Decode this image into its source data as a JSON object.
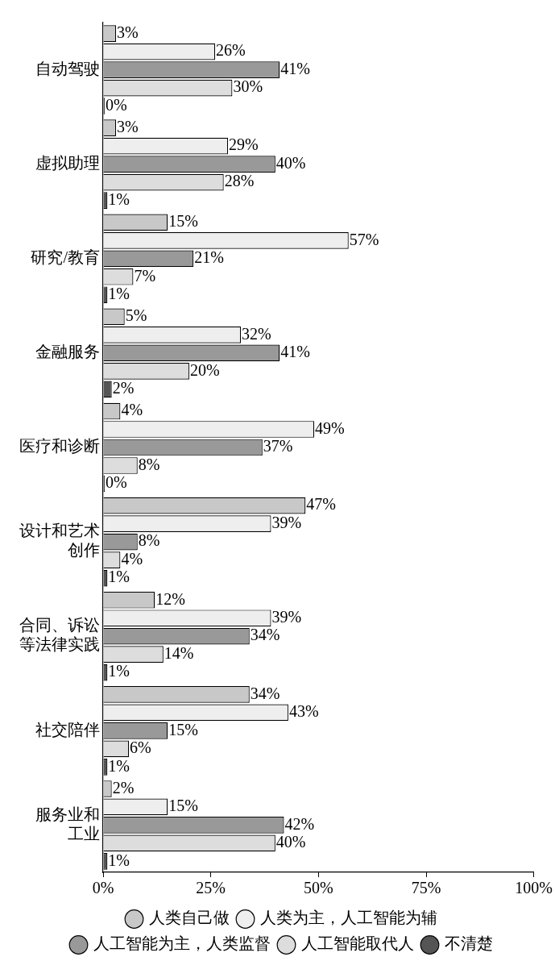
{
  "chart_data": {
    "type": "bar",
    "orientation": "horizontal",
    "categories": [
      "自动驾驶",
      "虚拟助理",
      "研究/教育",
      "金融服务",
      "医疗和诊断",
      "设计和艺术创作",
      "合同、诉讼等法律实践",
      "社交陪伴",
      "服务业和工业"
    ],
    "series": [
      {
        "name": "人类自己做",
        "color": "#c8c8c8",
        "values": [
          3,
          3,
          15,
          5,
          4,
          47,
          12,
          34,
          2
        ],
        "value_labels": [
          "3%",
          "3%",
          "15%",
          "5%",
          "4%",
          "47%",
          "12%",
          "34%",
          "2%"
        ]
      },
      {
        "name": "人类为主，人工智能为辅",
        "color": "#eeeeee",
        "values": [
          26,
          29,
          57,
          32,
          49,
          39,
          39,
          43,
          15
        ],
        "value_labels": [
          "26%",
          "29%",
          "57%",
          "32%",
          "49%",
          "39%",
          "39%",
          "43%",
          "15%"
        ]
      },
      {
        "name": "人工智能为主，人类监督",
        "color": "#999999",
        "values": [
          41,
          40,
          21,
          41,
          37,
          8,
          34,
          15,
          42
        ],
        "value_labels": [
          "41%",
          "40%",
          "21%",
          "41%",
          "37%",
          "8%",
          "34%",
          "15%",
          "42%"
        ]
      },
      {
        "name": "人工智能取代人",
        "color": "#dddddd",
        "values": [
          30,
          28,
          7,
          20,
          8,
          4,
          14,
          6,
          40
        ],
        "value_labels": [
          "30%",
          "28%",
          "7%",
          "20%",
          "8%",
          "4%",
          "14%",
          "6%",
          "40%"
        ]
      },
      {
        "name": "不清楚",
        "color": "#555555",
        "values": [
          0,
          1,
          1,
          2,
          0,
          1,
          1,
          1,
          1
        ],
        "value_labels": [
          "0%",
          "1%",
          "1%",
          "2%",
          "0%",
          "1%",
          "1%",
          "1%",
          "1%"
        ]
      }
    ],
    "xlim": [
      0,
      100
    ],
    "xticks": [
      {
        "value": 0,
        "label": "0%"
      },
      {
        "value": 25,
        "label": "25%"
      },
      {
        "value": 50,
        "label": "50%"
      },
      {
        "value": 75,
        "label": "75%"
      },
      {
        "value": 100,
        "label": "100%"
      }
    ],
    "grid": false,
    "legend": "bottom"
  }
}
